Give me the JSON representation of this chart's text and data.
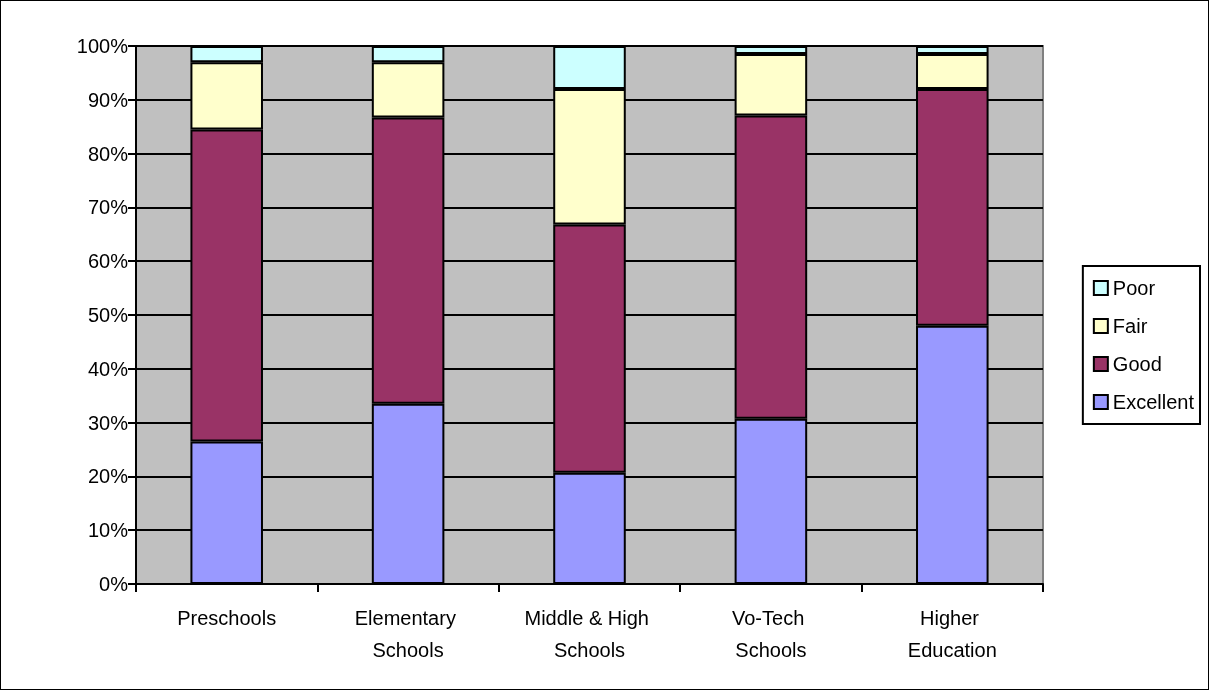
{
  "chart_data": {
    "type": "bar",
    "stacked": true,
    "categories": [
      "Preschools",
      "Elementary Schools",
      "Middle & High Schools",
      "Vo-Tech Schools",
      "Higher Education"
    ],
    "series": [
      {
        "name": "Excellent",
        "color": "#9999ff",
        "values": [
          26.5,
          33.5,
          20.7,
          30.7,
          48
        ]
      },
      {
        "name": "Good",
        "color": "#993366",
        "values": [
          58,
          53.2,
          46.1,
          56.4,
          44
        ]
      },
      {
        "name": "Fair",
        "color": "#ffffcc",
        "values": [
          12.5,
          10.3,
          25.2,
          11.4,
          6.5
        ]
      },
      {
        "name": "Poor",
        "color": "#ccffff",
        "values": [
          3,
          3,
          8,
          1.5,
          1.5
        ]
      }
    ],
    "ylim": [
      0,
      100
    ],
    "yticks": [
      {
        "value": 0,
        "label": "0%"
      },
      {
        "value": 10,
        "label": "10%"
      },
      {
        "value": 20,
        "label": "20%"
      },
      {
        "value": 30,
        "label": "30%"
      },
      {
        "value": 40,
        "label": "40%"
      },
      {
        "value": 50,
        "label": "50%"
      },
      {
        "value": 60,
        "label": "60%"
      },
      {
        "value": 70,
        "label": "70%"
      },
      {
        "value": 80,
        "label": "80%"
      },
      {
        "value": 90,
        "label": "90%"
      },
      {
        "value": 100,
        "label": "100%"
      }
    ],
    "grid": "y",
    "legend": "right"
  }
}
